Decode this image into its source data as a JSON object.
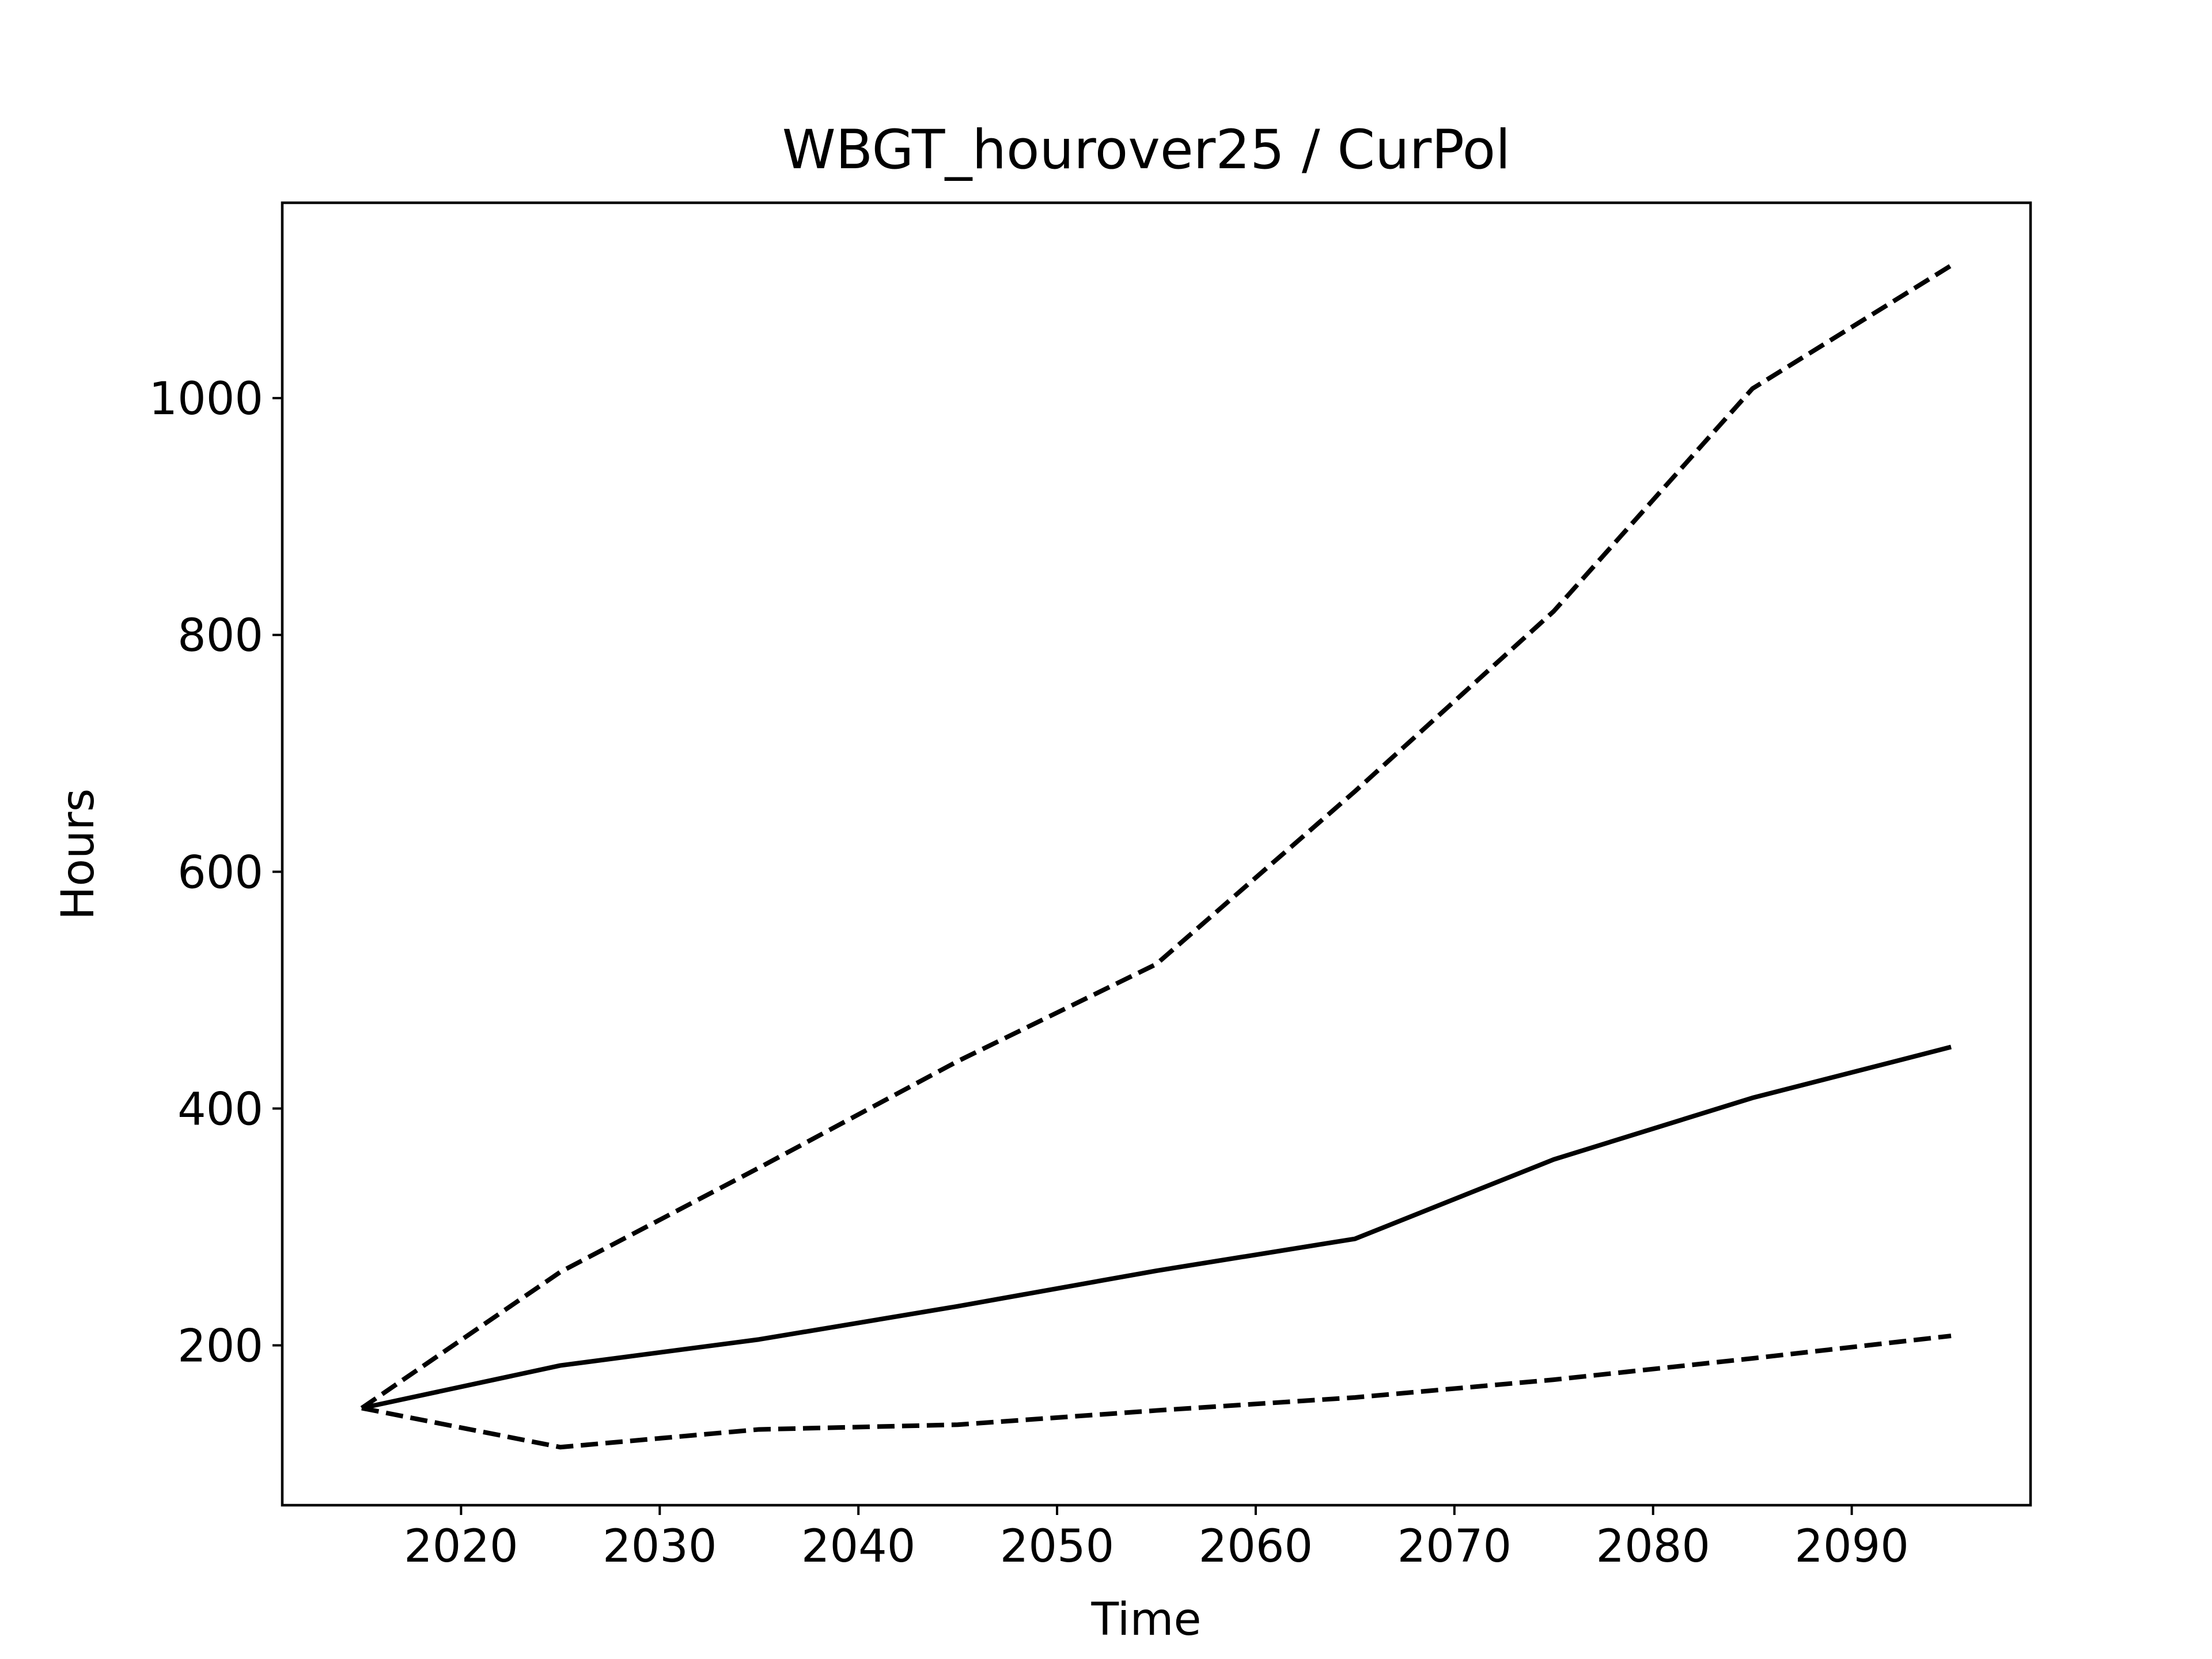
{
  "chart_data": {
    "type": "line",
    "title": "WBGT_hourover25 / CurPol",
    "xlabel": "Time",
    "ylabel": "Hours",
    "x": [
      2015,
      2025,
      2035,
      2045,
      2055,
      2065,
      2075,
      2085,
      2095
    ],
    "xlim": [
      2011,
      2099
    ],
    "ylim": [
      65,
      1165
    ],
    "xticks": [
      2020,
      2030,
      2040,
      2050,
      2060,
      2070,
      2080,
      2090
    ],
    "yticks": [
      200,
      400,
      600,
      800,
      1000
    ],
    "grid": false,
    "series": [
      {
        "style": "dashed",
        "values": [
          147,
          262,
          350,
          440,
          522,
          668,
          820,
          1008,
          1112
        ]
      },
      {
        "style": "solid",
        "values": [
          147,
          183,
          205,
          233,
          263,
          290,
          357,
          409,
          452
        ]
      },
      {
        "style": "dashed",
        "values": [
          147,
          114,
          129,
          133,
          145,
          156,
          171,
          189,
          208
        ]
      }
    ],
    "line_color": "#000000"
  }
}
